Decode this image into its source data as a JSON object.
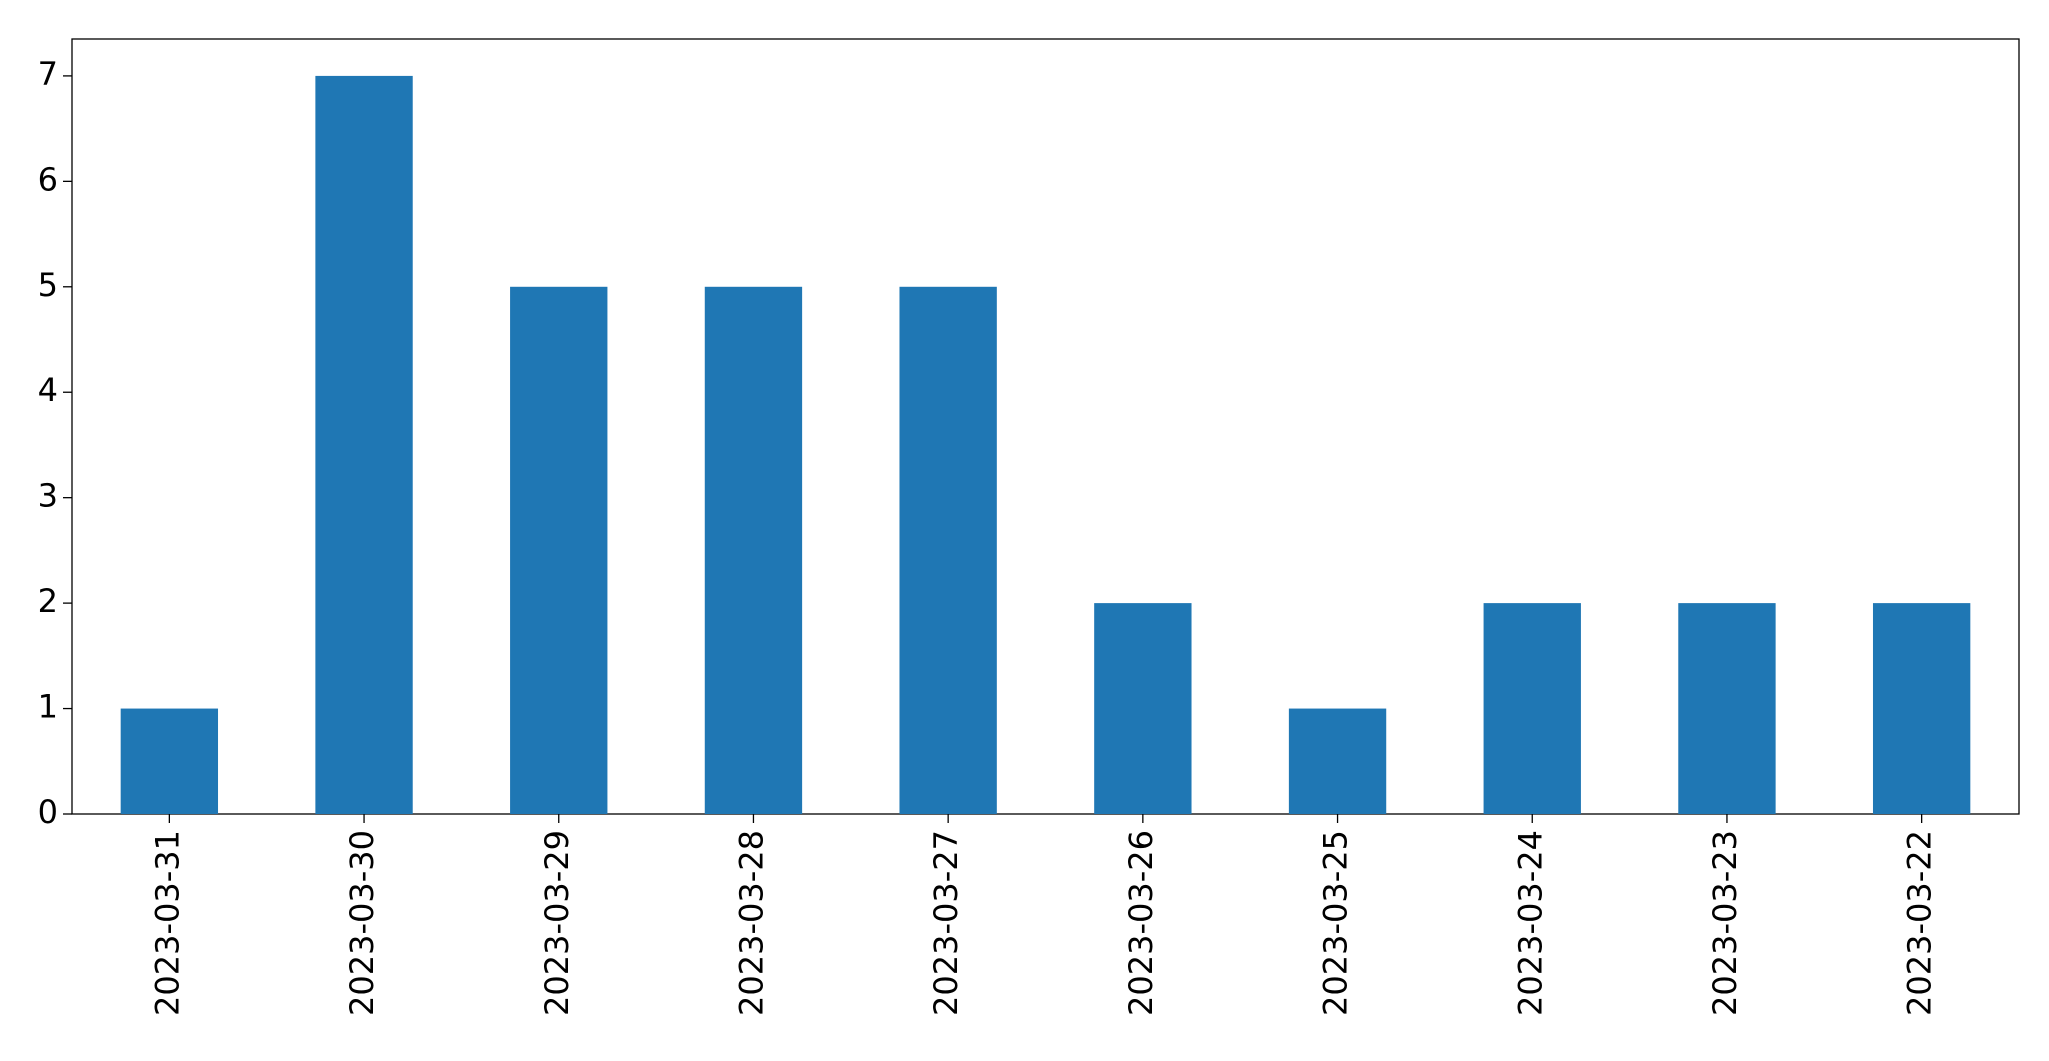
{
  "chart_data": {
    "type": "bar",
    "categories": [
      "2023-03-31",
      "2023-03-30",
      "2023-03-29",
      "2023-03-28",
      "2023-03-27",
      "2023-03-26",
      "2023-03-25",
      "2023-03-24",
      "2023-03-23",
      "2023-03-22"
    ],
    "values": [
      1,
      7,
      5,
      5,
      5,
      2,
      1,
      2,
      2,
      2
    ],
    "color": "#1f77b4",
    "ylim": [
      0,
      7.35
    ],
    "yticks": [
      0,
      1,
      2,
      3,
      4,
      5,
      6,
      7
    ],
    "grid": false
  }
}
